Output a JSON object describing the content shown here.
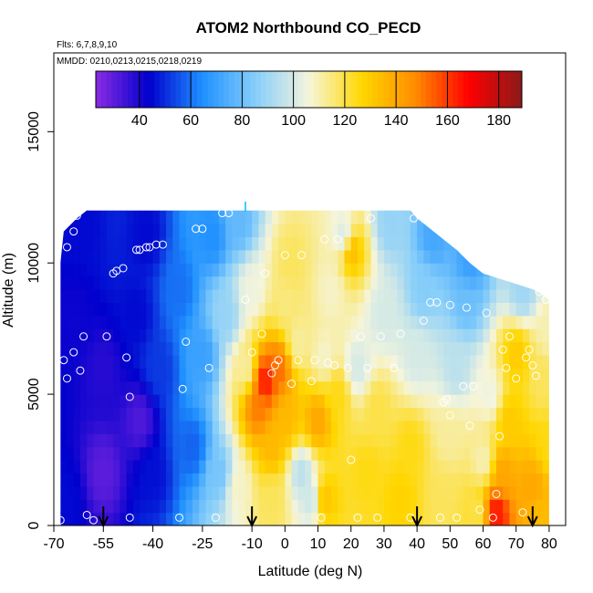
{
  "chart_data": {
    "type": "heatmap",
    "title": "ATOM2 Northbound CO_PECD",
    "subtitle_flights": "Flts: 6,7,8,9,10",
    "subtitle_dates": "MMDD: 0210,0213,0215,0218,0219",
    "xlabel": "Latitude (deg N)",
    "ylabel": "Altitude (m)",
    "xlim": [
      -70,
      85
    ],
    "ylim": [
      0,
      18000
    ],
    "x_ticks": [
      -70,
      -55,
      -40,
      -25,
      -10,
      0,
      10,
      20,
      30,
      40,
      50,
      60,
      70,
      80
    ],
    "x_tick_labels": [
      "-70",
      "-55",
      "-40",
      "-25",
      "-10",
      "0",
      "10",
      "20",
      "30",
      "40",
      "50",
      "60",
      "70",
      "80"
    ],
    "y_ticks": [
      0,
      5000,
      10000,
      15000
    ],
    "y_tick_labels": [
      "0",
      "5000",
      "10000",
      "15000"
    ],
    "colorbar": {
      "range": [
        23,
        189
      ],
      "ticks": [
        40,
        60,
        80,
        100,
        120,
        140,
        160,
        180
      ],
      "tick_labels": [
        "40",
        "60",
        "80",
        "100",
        "120",
        "140",
        "160",
        "180"
      ],
      "colors": [
        "#8a2be2",
        "#0000cd",
        "#1e90ff",
        "#87cefa",
        "#f5f5dc",
        "#ffd700",
        "#ff8c00",
        "#ff0000",
        "#8b1a1a"
      ]
    },
    "top_boundary": [
      [
        -68,
        10000
      ],
      [
        -67,
        11200
      ],
      [
        -63,
        11700
      ],
      [
        -60,
        12000
      ],
      [
        -45,
        12000
      ],
      [
        -25,
        12000
      ],
      [
        -10,
        12000
      ],
      [
        0,
        12000
      ],
      [
        10,
        12000
      ],
      [
        25,
        12000
      ],
      [
        38,
        12000
      ],
      [
        40,
        11700
      ],
      [
        43,
        11400
      ],
      [
        47,
        11000
      ],
      [
        52,
        10500
      ],
      [
        56,
        10000
      ],
      [
        60,
        9600
      ],
      [
        65,
        9400
      ],
      [
        70,
        9200
      ],
      [
        75,
        9000
      ],
      [
        78,
        8800
      ],
      [
        80,
        8600
      ]
    ],
    "x_range": [
      -68,
      80
    ],
    "field_points": [
      [
        -55,
        2000,
        30
      ],
      [
        -44,
        4000,
        32
      ],
      [
        -45,
        8000,
        45
      ],
      [
        -42,
        11000,
        45
      ],
      [
        -66,
        1000,
        45
      ],
      [
        -64,
        8000,
        42
      ],
      [
        -62,
        11500,
        45
      ],
      [
        -55,
        6000,
        38
      ],
      [
        -40,
        2000,
        46
      ],
      [
        -38,
        6000,
        52
      ],
      [
        -32,
        9000,
        60
      ],
      [
        -28,
        3000,
        58
      ],
      [
        -25,
        6500,
        70
      ],
      [
        -22,
        11000,
        65
      ],
      [
        -20,
        2000,
        82
      ],
      [
        -18,
        8000,
        88
      ],
      [
        -14,
        11500,
        78
      ],
      [
        -14,
        1500,
        108
      ],
      [
        -12,
        6000,
        112
      ],
      [
        -10,
        9000,
        105
      ],
      [
        -6,
        5500,
        165
      ],
      [
        -8,
        4500,
        150
      ],
      [
        -4,
        3000,
        135
      ],
      [
        -4,
        1000,
        118
      ],
      [
        -2,
        6000,
        152
      ],
      [
        0,
        4000,
        135
      ],
      [
        0,
        8500,
        115
      ],
      [
        2,
        10000,
        118
      ],
      [
        4,
        7000,
        112
      ],
      [
        5,
        2000,
        95
      ],
      [
        8,
        1000,
        98
      ],
      [
        12,
        1000,
        132
      ],
      [
        10,
        4000,
        140
      ],
      [
        12,
        6500,
        108
      ],
      [
        16,
        5000,
        125
      ],
      [
        14,
        9000,
        108
      ],
      [
        18,
        11000,
        100
      ],
      [
        20,
        10500,
        135
      ],
      [
        22,
        6000,
        100
      ],
      [
        25,
        2000,
        125
      ],
      [
        28,
        4500,
        120
      ],
      [
        30,
        8000,
        100
      ],
      [
        32,
        11500,
        88
      ],
      [
        35,
        1000,
        128
      ],
      [
        38,
        3000,
        125
      ],
      [
        40,
        6500,
        100
      ],
      [
        42,
        9000,
        85
      ],
      [
        45,
        11000,
        72
      ],
      [
        48,
        1000,
        118
      ],
      [
        50,
        3500,
        112
      ],
      [
        52,
        6000,
        95
      ],
      [
        55,
        8500,
        80
      ],
      [
        56,
        10000,
        70
      ],
      [
        58,
        500,
        120
      ],
      [
        60,
        2500,
        110
      ],
      [
        62,
        5000,
        105
      ],
      [
        64,
        500,
        165
      ],
      [
        66,
        2000,
        140
      ],
      [
        68,
        4000,
        130
      ],
      [
        70,
        6500,
        130
      ],
      [
        72,
        9000,
        90
      ],
      [
        75,
        1500,
        140
      ],
      [
        78,
        5500,
        118
      ],
      [
        80,
        3000,
        125
      ],
      [
        80,
        7500,
        110
      ],
      [
        78,
        500,
        135
      ]
    ],
    "sample_points": [
      [
        -68,
        200
      ],
      [
        -67,
        6300
      ],
      [
        -66,
        10600
      ],
      [
        -66,
        5600
      ],
      [
        -64,
        11200
      ],
      [
        -64,
        6600
      ],
      [
        -63,
        11800
      ],
      [
        -62,
        5900
      ],
      [
        -61,
        7200
      ],
      [
        -60,
        400
      ],
      [
        -58,
        200
      ],
      [
        -54,
        7200
      ],
      [
        -52,
        9600
      ],
      [
        -51,
        9700
      ],
      [
        -49,
        9800
      ],
      [
        -48,
        6400
      ],
      [
        -47,
        300
      ],
      [
        -47,
        4900
      ],
      [
        -45,
        10500
      ],
      [
        -44,
        10500
      ],
      [
        -42,
        10600
      ],
      [
        -41,
        10600
      ],
      [
        -39,
        10700
      ],
      [
        -37,
        10700
      ],
      [
        -32,
        300
      ],
      [
        -31,
        5200
      ],
      [
        -30,
        7000
      ],
      [
        -27,
        11300
      ],
      [
        -25,
        11300
      ],
      [
        -23,
        6000
      ],
      [
        -21,
        300
      ],
      [
        -19,
        11900
      ],
      [
        -17,
        11900
      ],
      [
        -12,
        8600
      ],
      [
        -10,
        6600
      ],
      [
        -7,
        7300
      ],
      [
        -6,
        9600
      ],
      [
        -4,
        5800
      ],
      [
        -3,
        6100
      ],
      [
        -2,
        6300
      ],
      [
        0,
        10300
      ],
      [
        2,
        5400
      ],
      [
        4,
        6300
      ],
      [
        5,
        10300
      ],
      [
        8,
        5500
      ],
      [
        9,
        6300
      ],
      [
        11,
        300
      ],
      [
        12,
        10900
      ],
      [
        13,
        6200
      ],
      [
        15,
        6100
      ],
      [
        16,
        10900
      ],
      [
        19,
        6000
      ],
      [
        20,
        2500
      ],
      [
        22,
        300
      ],
      [
        23,
        7200
      ],
      [
        25,
        6000
      ],
      [
        26,
        11700
      ],
      [
        28,
        300
      ],
      [
        29,
        7200
      ],
      [
        33,
        6000
      ],
      [
        35,
        7300
      ],
      [
        38,
        300
      ],
      [
        39,
        11700
      ],
      [
        42,
        7800
      ],
      [
        44,
        8500
      ],
      [
        46,
        8500
      ],
      [
        47,
        300
      ],
      [
        48,
        4700
      ],
      [
        49,
        4800
      ],
      [
        50,
        8400
      ],
      [
        50,
        4200
      ],
      [
        52,
        300
      ],
      [
        54,
        5300
      ],
      [
        55,
        8300
      ],
      [
        56,
        3800
      ],
      [
        57,
        5300
      ],
      [
        59,
        600
      ],
      [
        61,
        8100
      ],
      [
        63,
        300
      ],
      [
        64,
        1200
      ],
      [
        65,
        3400
      ],
      [
        66,
        6700
      ],
      [
        67,
        6000
      ],
      [
        68,
        7200
      ],
      [
        70,
        5600
      ],
      [
        72,
        500
      ],
      [
        73,
        6400
      ],
      [
        74,
        6700
      ],
      [
        75,
        6100
      ],
      [
        76,
        5700
      ],
      [
        77,
        8900
      ],
      [
        79,
        8600
      ]
    ],
    "arrows": [
      -55,
      -10,
      40,
      75
    ]
  }
}
